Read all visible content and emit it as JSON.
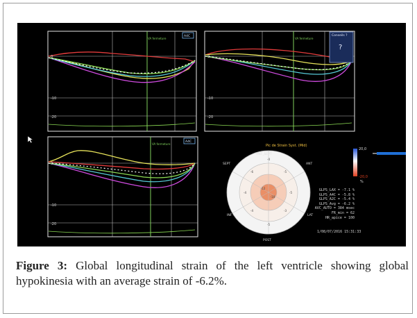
{
  "caption": {
    "label": "Figure 3:",
    "text": " Global longitudinal strain of the left ventricle showing global hypokinesia with an average strain of -6.2%."
  },
  "panels": {
    "top_left": {
      "title": "VA fermeture",
      "badge": "A4C",
      "ticks": [
        "0",
        "-10",
        "-20"
      ]
    },
    "top_right": {
      "title": "VA fermeture",
      "badge": "Conseils ?",
      "help": "?",
      "ticks": [
        "0",
        "-10",
        "-20"
      ]
    },
    "bottom_left": {
      "title": "VA fermeture",
      "badge": "A4C",
      "ticks": [
        "0",
        "-10",
        "-20"
      ]
    }
  },
  "bullseye": {
    "title": "Pic de Strain Syst. (Mid)",
    "labels": {
      "ant_sept": "ANT_SEPT",
      "ant": "ANT",
      "sept": "SEPT",
      "lat": "LAT",
      "inf": "INF",
      "post": "POST"
    },
    "scale_max": "20,0",
    "scale_min": "-20,0",
    "scale_unit": "%"
  },
  "stats": [
    "GLPS_LAX = -7.1 %",
    "GLPS_A4C = -5.8 %",
    "GLPS_A2C = -5.4 %",
    "GLPS_Avg = -6.2 %",
    "AVC_AUTO = 384 msec",
    "FR_min = 62",
    "HR_apice = 100"
  ],
  "timestamp": "1/08/07/2016 15:31:33",
  "colors": {
    "background": "#000000",
    "grid": "#e0e0e0",
    "marker": "#7fd05c",
    "accent": "#1f6fd6"
  }
}
